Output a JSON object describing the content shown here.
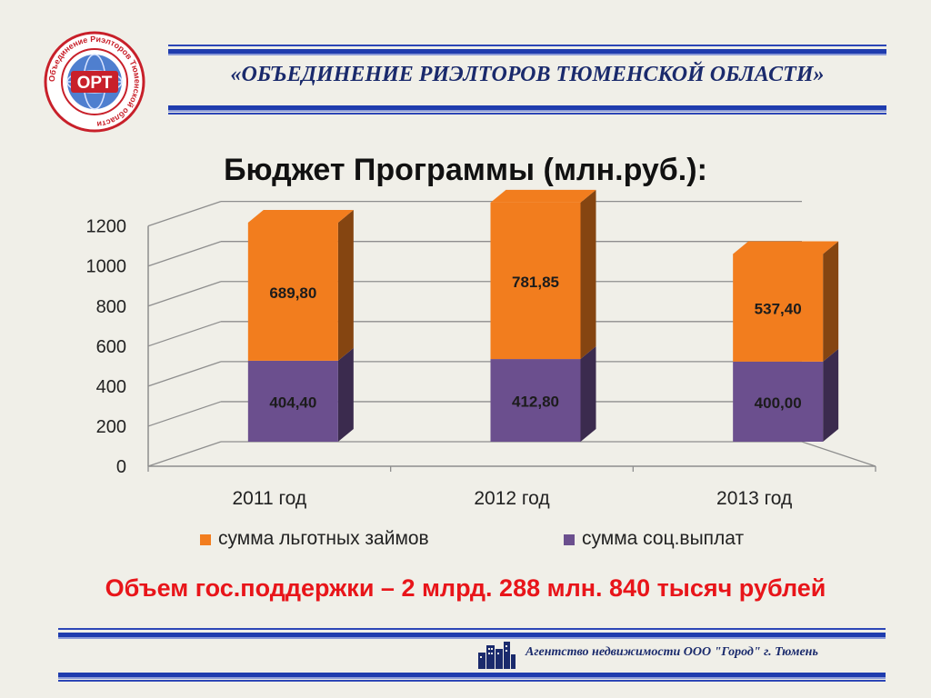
{
  "colors": {
    "accent": "#1f3cae",
    "orange": "#f27d1e",
    "purple": "#6b4f8e",
    "highlight": "#e8151a"
  },
  "logo": {
    "emblem_text": "ОРТ",
    "ring_text": "Объединение Риэлторов Тюменской области"
  },
  "header": {
    "title": "«ОБЪЕДИНЕНИЕ РИЭЛТОРОВ ТЮМЕНСКОЙ ОБЛАСТИ»"
  },
  "chart_data": {
    "type": "bar",
    "stacked": true,
    "title": "Бюджет Программы (млн.руб.):",
    "categories": [
      "2011 год",
      "2012 год",
      "2013 год"
    ],
    "series": [
      {
        "name": "сумма соц.выплат",
        "values": [
          404.4,
          412.8,
          400.0
        ],
        "labels": [
          "404,40",
          "412,80",
          "400,00"
        ],
        "color": "#6b4f8e"
      },
      {
        "name": "сумма льготных займов",
        "values": [
          689.8,
          781.85,
          537.4
        ],
        "labels": [
          "689,80",
          "781,85",
          "537,40"
        ],
        "color": "#f27d1e"
      }
    ],
    "yticks": [
      "0",
      "200",
      "400",
      "600",
      "800",
      "1000",
      "1200"
    ],
    "ylim": [
      0,
      1200
    ],
    "grid": true,
    "legend_position": "bottom",
    "legend_order": [
      "сумма льготных займов",
      "сумма соц.выплат"
    ]
  },
  "summary": "Объем гос.поддержки – 2 млрд. 288 млн. 840 тысяч рублей",
  "footer": {
    "text": "Агентство недвижимости ООО \"Город\" г. Тюмень"
  }
}
